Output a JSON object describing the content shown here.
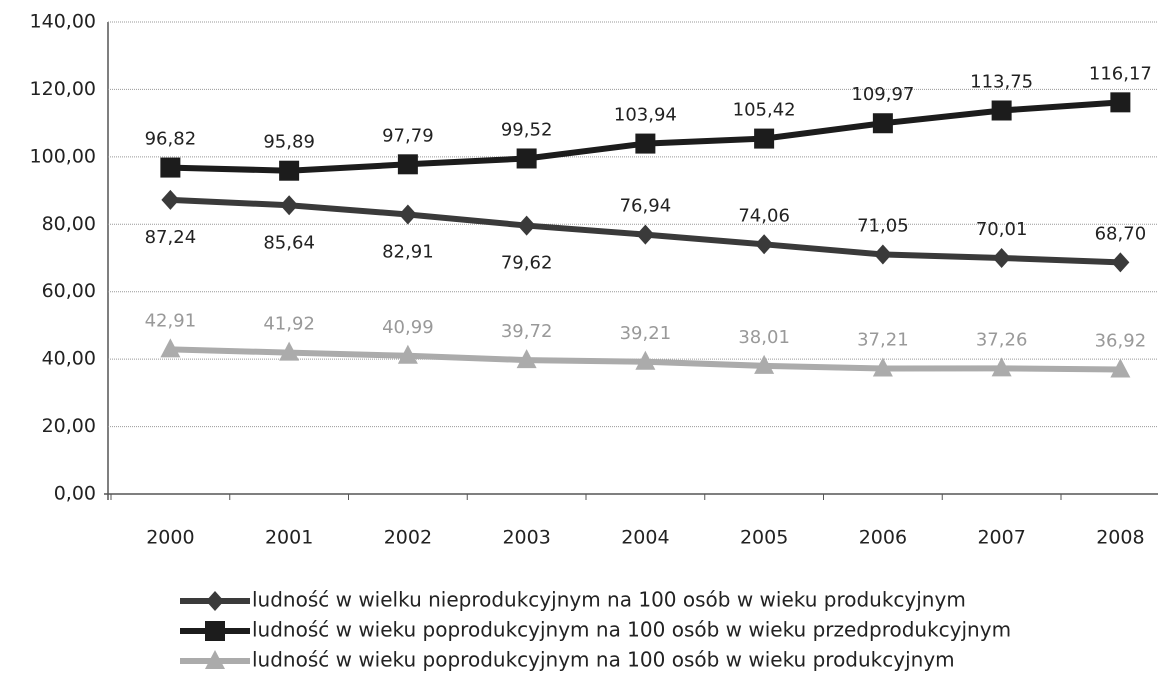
{
  "chart_data": {
    "type": "line",
    "categories": [
      "2000",
      "2001",
      "2002",
      "2003",
      "2004",
      "2005",
      "2006",
      "2007",
      "2008"
    ],
    "series": [
      {
        "name": "ludność w wielku nieprodukcyjnym na 100 osób w wieku produkcyjnym",
        "color": "#3a3a3a",
        "marker": "diamond",
        "values": [
          87.24,
          85.64,
          82.91,
          79.62,
          76.94,
          74.06,
          71.05,
          70.01,
          68.7
        ],
        "value_labels": [
          "87,24",
          "85,64",
          "82,91",
          "79,62",
          "76,94",
          "74,06",
          "71,05",
          "70,01",
          "68,70"
        ]
      },
      {
        "name": "ludność w wieku poprodukcyjnym na 100 osób w wieku przedprodukcyjnym",
        "color": "#1c1c1c",
        "marker": "square",
        "values": [
          96.82,
          95.89,
          97.79,
          99.52,
          103.94,
          105.42,
          109.97,
          113.75,
          116.17
        ],
        "value_labels": [
          "96,82",
          "95,89",
          "97,79",
          "99,52",
          "103,94",
          "105,42",
          "109,97",
          "113,75",
          "116,17"
        ]
      },
      {
        "name": "ludność w wieku poprodukcyjnym na 100 osób w wieku produkcyjnym",
        "color": "#ababab",
        "marker": "triangle",
        "values": [
          42.91,
          41.92,
          40.99,
          39.72,
          39.21,
          38.01,
          37.21,
          37.26,
          36.92
        ],
        "value_labels": [
          "42,91",
          "41,92",
          "40,99",
          "39,72",
          "39,21",
          "38,01",
          "37,21",
          "37,26",
          "36,92"
        ]
      }
    ],
    "ylim": [
      0,
      140
    ],
    "yticks": [
      {
        "value": 0,
        "label": "0,00"
      },
      {
        "value": 20,
        "label": "20,00"
      },
      {
        "value": 40,
        "label": "40,00"
      },
      {
        "value": 60,
        "label": "60,00"
      },
      {
        "value": 80,
        "label": "80,00"
      },
      {
        "value": 100,
        "label": "100,00"
      },
      {
        "value": 120,
        "label": "120,00"
      },
      {
        "value": 140,
        "label": "140,00"
      }
    ],
    "grid": true
  }
}
